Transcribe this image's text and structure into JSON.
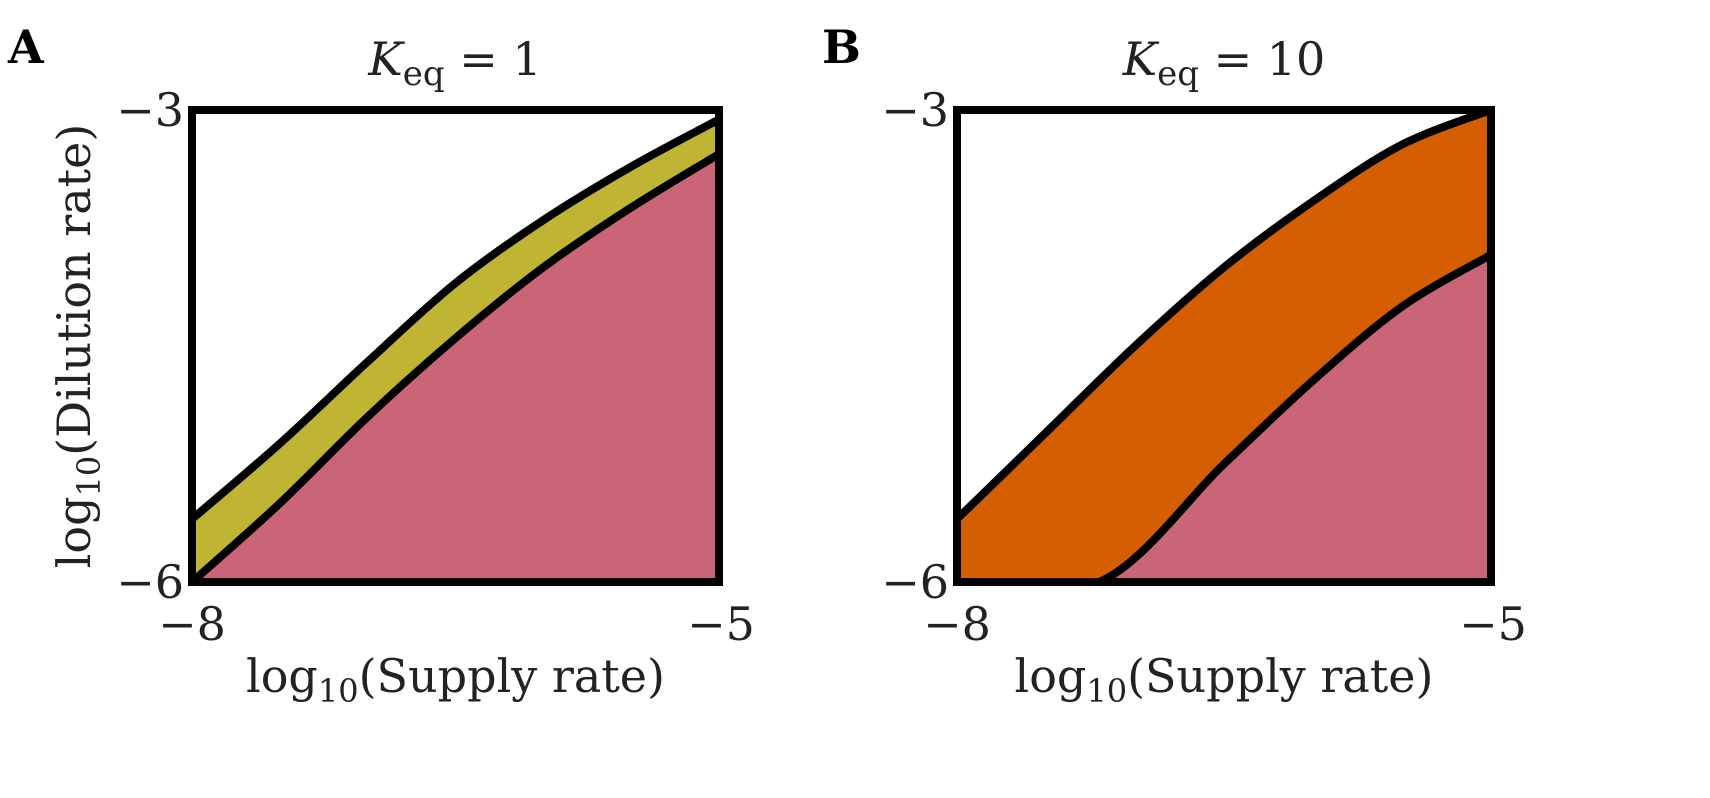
{
  "chart_data": [
    {
      "type": "area",
      "panel_label": "A",
      "title": {
        "main": "K",
        "sub": "eq",
        "rest": " = 1"
      },
      "xlabel": {
        "main": "log",
        "sub": "10",
        "rest": "(Supply rate)"
      },
      "ylabel": {
        "main": "log",
        "sub": "10",
        "rest": "(Dilution rate)"
      },
      "xlim": [
        -8,
        -5
      ],
      "ylim": [
        -6,
        -3
      ],
      "xticks": [
        "−8",
        "−5"
      ],
      "yticks": [
        "−3",
        "−6"
      ],
      "grid": false,
      "regions": [
        {
          "name": "",
          "color": "#ca6577",
          "boundary_below": "bottom"
        },
        {
          "name": "",
          "color": "#c0b433"
        }
      ],
      "upper_boundary": {
        "x": [
          -8,
          -7.5,
          -7,
          -6.5,
          -6,
          -5.5,
          -5
        ],
        "y": [
          -5.6,
          -5.12,
          -4.6,
          -4.1,
          -3.7,
          -3.36,
          -3.06
        ]
      },
      "lower_boundary": {
        "x": [
          -8,
          -7.5,
          -7,
          -6.5,
          -6,
          -5.5,
          -5
        ],
        "y": [
          -6.0,
          -5.5,
          -4.95,
          -4.45,
          -4.0,
          -3.62,
          -3.28
        ]
      },
      "colors": {
        "upper_band": "#c0b433",
        "lower_region": "#ca6577"
      }
    },
    {
      "type": "area",
      "panel_label": "B",
      "title": {
        "main": "K",
        "sub": "eq",
        "rest": " = 10"
      },
      "xlabel": {
        "main": "log",
        "sub": "10",
        "rest": "(Supply rate)"
      },
      "ylabel": {
        "main": "",
        "sub": "",
        "rest": ""
      },
      "xlim": [
        -8,
        -5
      ],
      "ylim": [
        -6,
        -3
      ],
      "xticks": [
        "−8",
        "−5"
      ],
      "yticks": [
        "−3",
        "−6"
      ],
      "grid": false,
      "regions": [
        {
          "name": "",
          "color": "#ca6577"
        },
        {
          "name": "",
          "color": "#d55e00"
        }
      ],
      "upper_boundary": {
        "x": [
          -8,
          -7.5,
          -7,
          -6.5,
          -6,
          -5.5,
          -5
        ],
        "y": [
          -5.6,
          -5.05,
          -4.5,
          -4.0,
          -3.58,
          -3.22,
          -3.0
        ]
      },
      "lower_boundary": {
        "x": [
          -8,
          -7.2,
          -6.5,
          -6,
          -5.5,
          -5
        ],
        "y": [
          -6.0,
          -6.0,
          -5.25,
          -4.72,
          -4.25,
          -3.92
        ]
      },
      "colors": {
        "upper_band": "#d55e00",
        "lower_region": "#ca6577"
      }
    }
  ]
}
